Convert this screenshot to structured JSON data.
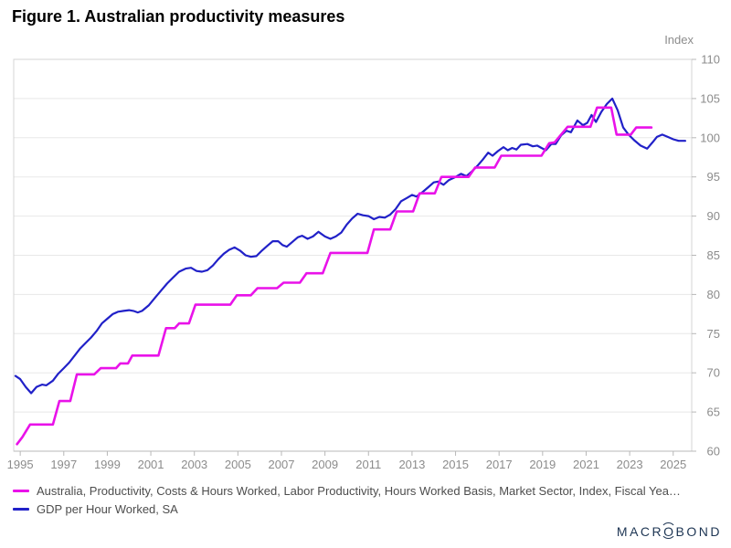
{
  "title": "Figure 1. Australian productivity measures",
  "logo": {
    "part1": "MACR",
    "o": "O",
    "part2": "BOND"
  },
  "colors": {
    "productivity_line": "#E912E9",
    "gdp_line": "#2121C8",
    "grid": "#e8e8e8",
    "frame": "#d4d4d4",
    "axis": "#b8b8b8",
    "tick_label": "#8c8c8c",
    "legend_text": "#4d4d4d",
    "logo_navy": "#1d3553"
  },
  "chart_data": {
    "type": "line",
    "title": "Figure 1. Australian productivity measures",
    "y_axis_label": "Index",
    "xlabel": "",
    "ylabel": "Index",
    "xlim": [
      1994.7,
      2025.85
    ],
    "ylim": [
      60,
      110
    ],
    "x_ticks": [
      1995,
      1997,
      1999,
      2001,
      2003,
      2005,
      2007,
      2009,
      2011,
      2013,
      2015,
      2017,
      2019,
      2021,
      2023,
      2025
    ],
    "y_ticks": [
      60,
      65,
      70,
      75,
      80,
      85,
      90,
      95,
      100,
      105,
      110
    ],
    "grid": "horizontal",
    "y_axis_side": "right",
    "legend_position": "bottom-left",
    "series": [
      {
        "name": "Australia, Productivity, Costs & Hours Worked, Labor Productivity, Hours Worked Basis, Market Sector, Index, Fiscal Yea…",
        "color": "#E912E9",
        "width": 2.6,
        "points": [
          [
            1994.85,
            60.9
          ],
          [
            1995.1,
            61.8
          ],
          [
            1995.45,
            63.4
          ],
          [
            1996.5,
            63.4
          ],
          [
            1996.8,
            66.4
          ],
          [
            1997.3,
            66.4
          ],
          [
            1997.6,
            69.8
          ],
          [
            1998.4,
            69.8
          ],
          [
            1998.7,
            70.6
          ],
          [
            1999.4,
            70.6
          ],
          [
            1999.6,
            71.2
          ],
          [
            1999.95,
            71.2
          ],
          [
            2000.15,
            72.2
          ],
          [
            2001.35,
            72.2
          ],
          [
            2001.7,
            75.7
          ],
          [
            2002.1,
            75.7
          ],
          [
            2002.3,
            76.3
          ],
          [
            2002.75,
            76.3
          ],
          [
            2003.05,
            78.7
          ],
          [
            2004.65,
            78.7
          ],
          [
            2004.95,
            79.9
          ],
          [
            2005.6,
            79.9
          ],
          [
            2005.9,
            80.8
          ],
          [
            2006.8,
            80.8
          ],
          [
            2007.1,
            81.5
          ],
          [
            2007.85,
            81.5
          ],
          [
            2008.15,
            82.7
          ],
          [
            2008.9,
            82.7
          ],
          [
            2009.25,
            85.3
          ],
          [
            2010.95,
            85.3
          ],
          [
            2011.25,
            88.3
          ],
          [
            2012.0,
            88.3
          ],
          [
            2012.3,
            90.6
          ],
          [
            2013.05,
            90.6
          ],
          [
            2013.35,
            92.9
          ],
          [
            2014.05,
            92.9
          ],
          [
            2014.35,
            95.0
          ],
          [
            2015.6,
            95.0
          ],
          [
            2015.9,
            96.2
          ],
          [
            2016.8,
            96.2
          ],
          [
            2017.1,
            97.7
          ],
          [
            2018.95,
            97.7
          ],
          [
            2019.3,
            99.3
          ],
          [
            2019.55,
            99.4
          ],
          [
            2020.15,
            101.4
          ],
          [
            2021.2,
            101.4
          ],
          [
            2021.5,
            103.85
          ],
          [
            2022.15,
            103.85
          ],
          [
            2022.4,
            100.4
          ],
          [
            2023.05,
            100.4
          ],
          [
            2023.3,
            101.3
          ],
          [
            2024.0,
            101.3
          ]
        ]
      },
      {
        "name": "GDP per Hour Worked, SA",
        "color": "#2121C8",
        "width": 2.2,
        "points": [
          [
            1994.78,
            69.6
          ],
          [
            1995.0,
            69.2
          ],
          [
            1995.25,
            68.2
          ],
          [
            1995.5,
            67.4
          ],
          [
            1995.75,
            68.2
          ],
          [
            1996.0,
            68.5
          ],
          [
            1996.2,
            68.4
          ],
          [
            1996.5,
            69.0
          ],
          [
            1996.75,
            69.9
          ],
          [
            1997.0,
            70.6
          ],
          [
            1997.25,
            71.3
          ],
          [
            1997.5,
            72.2
          ],
          [
            1997.75,
            73.1
          ],
          [
            1998.0,
            73.8
          ],
          [
            1998.25,
            74.5
          ],
          [
            1998.5,
            75.3
          ],
          [
            1998.75,
            76.3
          ],
          [
            1999.0,
            76.9
          ],
          [
            1999.25,
            77.5
          ],
          [
            1999.5,
            77.8
          ],
          [
            1999.75,
            77.9
          ],
          [
            2000.0,
            78.0
          ],
          [
            2000.2,
            77.9
          ],
          [
            2000.4,
            77.7
          ],
          [
            2000.6,
            77.9
          ],
          [
            2000.9,
            78.6
          ],
          [
            2001.2,
            79.6
          ],
          [
            2001.5,
            80.6
          ],
          [
            2001.75,
            81.4
          ],
          [
            2002.0,
            82.1
          ],
          [
            2002.3,
            82.9
          ],
          [
            2002.6,
            83.3
          ],
          [
            2002.85,
            83.4
          ],
          [
            2003.1,
            83.0
          ],
          [
            2003.35,
            82.9
          ],
          [
            2003.6,
            83.1
          ],
          [
            2003.85,
            83.7
          ],
          [
            2004.1,
            84.5
          ],
          [
            2004.35,
            85.2
          ],
          [
            2004.6,
            85.7
          ],
          [
            2004.85,
            86.0
          ],
          [
            2005.1,
            85.6
          ],
          [
            2005.35,
            85.0
          ],
          [
            2005.6,
            84.8
          ],
          [
            2005.85,
            84.9
          ],
          [
            2006.1,
            85.6
          ],
          [
            2006.35,
            86.2
          ],
          [
            2006.6,
            86.8
          ],
          [
            2006.85,
            86.8
          ],
          [
            2007.05,
            86.3
          ],
          [
            2007.25,
            86.1
          ],
          [
            2007.5,
            86.7
          ],
          [
            2007.75,
            87.3
          ],
          [
            2007.95,
            87.5
          ],
          [
            2008.2,
            87.1
          ],
          [
            2008.45,
            87.4
          ],
          [
            2008.7,
            88.0
          ],
          [
            2009.0,
            87.4
          ],
          [
            2009.25,
            87.1
          ],
          [
            2009.5,
            87.4
          ],
          [
            2009.75,
            87.9
          ],
          [
            2010.0,
            88.9
          ],
          [
            2010.25,
            89.7
          ],
          [
            2010.5,
            90.3
          ],
          [
            2010.75,
            90.1
          ],
          [
            2011.0,
            90.0
          ],
          [
            2011.25,
            89.6
          ],
          [
            2011.5,
            89.9
          ],
          [
            2011.75,
            89.8
          ],
          [
            2012.0,
            90.2
          ],
          [
            2012.25,
            90.9
          ],
          [
            2012.5,
            91.9
          ],
          [
            2012.75,
            92.3
          ],
          [
            2013.0,
            92.7
          ],
          [
            2013.2,
            92.5
          ],
          [
            2013.5,
            93.1
          ],
          [
            2013.75,
            93.7
          ],
          [
            2014.0,
            94.3
          ],
          [
            2014.2,
            94.4
          ],
          [
            2014.45,
            94.0
          ],
          [
            2014.7,
            94.6
          ],
          [
            2015.0,
            95.0
          ],
          [
            2015.25,
            95.4
          ],
          [
            2015.5,
            95.1
          ],
          [
            2015.75,
            95.7
          ],
          [
            2016.0,
            96.4
          ],
          [
            2016.25,
            97.2
          ],
          [
            2016.5,
            98.1
          ],
          [
            2016.7,
            97.7
          ],
          [
            2016.95,
            98.3
          ],
          [
            2017.2,
            98.8
          ],
          [
            2017.4,
            98.4
          ],
          [
            2017.6,
            98.7
          ],
          [
            2017.8,
            98.5
          ],
          [
            2018.0,
            99.1
          ],
          [
            2018.3,
            99.2
          ],
          [
            2018.55,
            98.9
          ],
          [
            2018.75,
            99.0
          ],
          [
            2018.95,
            98.7
          ],
          [
            2019.15,
            98.4
          ],
          [
            2019.4,
            99.2
          ],
          [
            2019.6,
            99.2
          ],
          [
            2019.85,
            100.3
          ],
          [
            2020.1,
            100.9
          ],
          [
            2020.3,
            100.7
          ],
          [
            2020.6,
            102.2
          ],
          [
            2020.85,
            101.6
          ],
          [
            2021.05,
            101.9
          ],
          [
            2021.25,
            102.9
          ],
          [
            2021.45,
            102.0
          ],
          [
            2021.7,
            103.3
          ],
          [
            2021.95,
            104.3
          ],
          [
            2022.2,
            105.0
          ],
          [
            2022.45,
            103.5
          ],
          [
            2022.7,
            101.3
          ],
          [
            2022.95,
            100.4
          ],
          [
            2023.2,
            99.7
          ],
          [
            2023.5,
            99.0
          ],
          [
            2023.8,
            98.6
          ],
          [
            2024.05,
            99.4
          ],
          [
            2024.25,
            100.1
          ],
          [
            2024.5,
            100.4
          ],
          [
            2024.75,
            100.1
          ],
          [
            2025.0,
            99.8
          ],
          [
            2025.25,
            99.6
          ],
          [
            2025.55,
            99.6
          ]
        ]
      }
    ]
  }
}
